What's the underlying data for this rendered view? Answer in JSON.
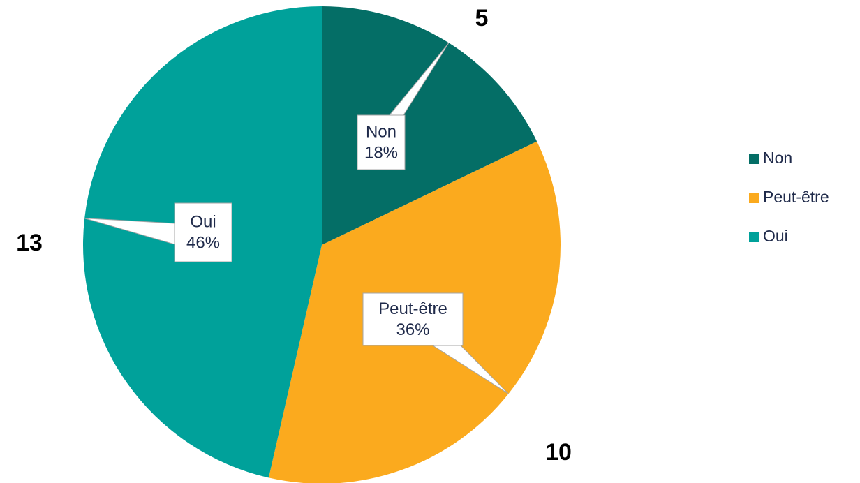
{
  "chart_data": {
    "type": "pie",
    "categories": [
      "Non",
      "Peut-être",
      "Oui"
    ],
    "values": [
      5,
      10,
      13
    ],
    "percent_labels": [
      "18%",
      "36%",
      "46%"
    ],
    "colors": [
      "#046e66",
      "#fbaa1e",
      "#00a19a"
    ],
    "legend": "right"
  }
}
